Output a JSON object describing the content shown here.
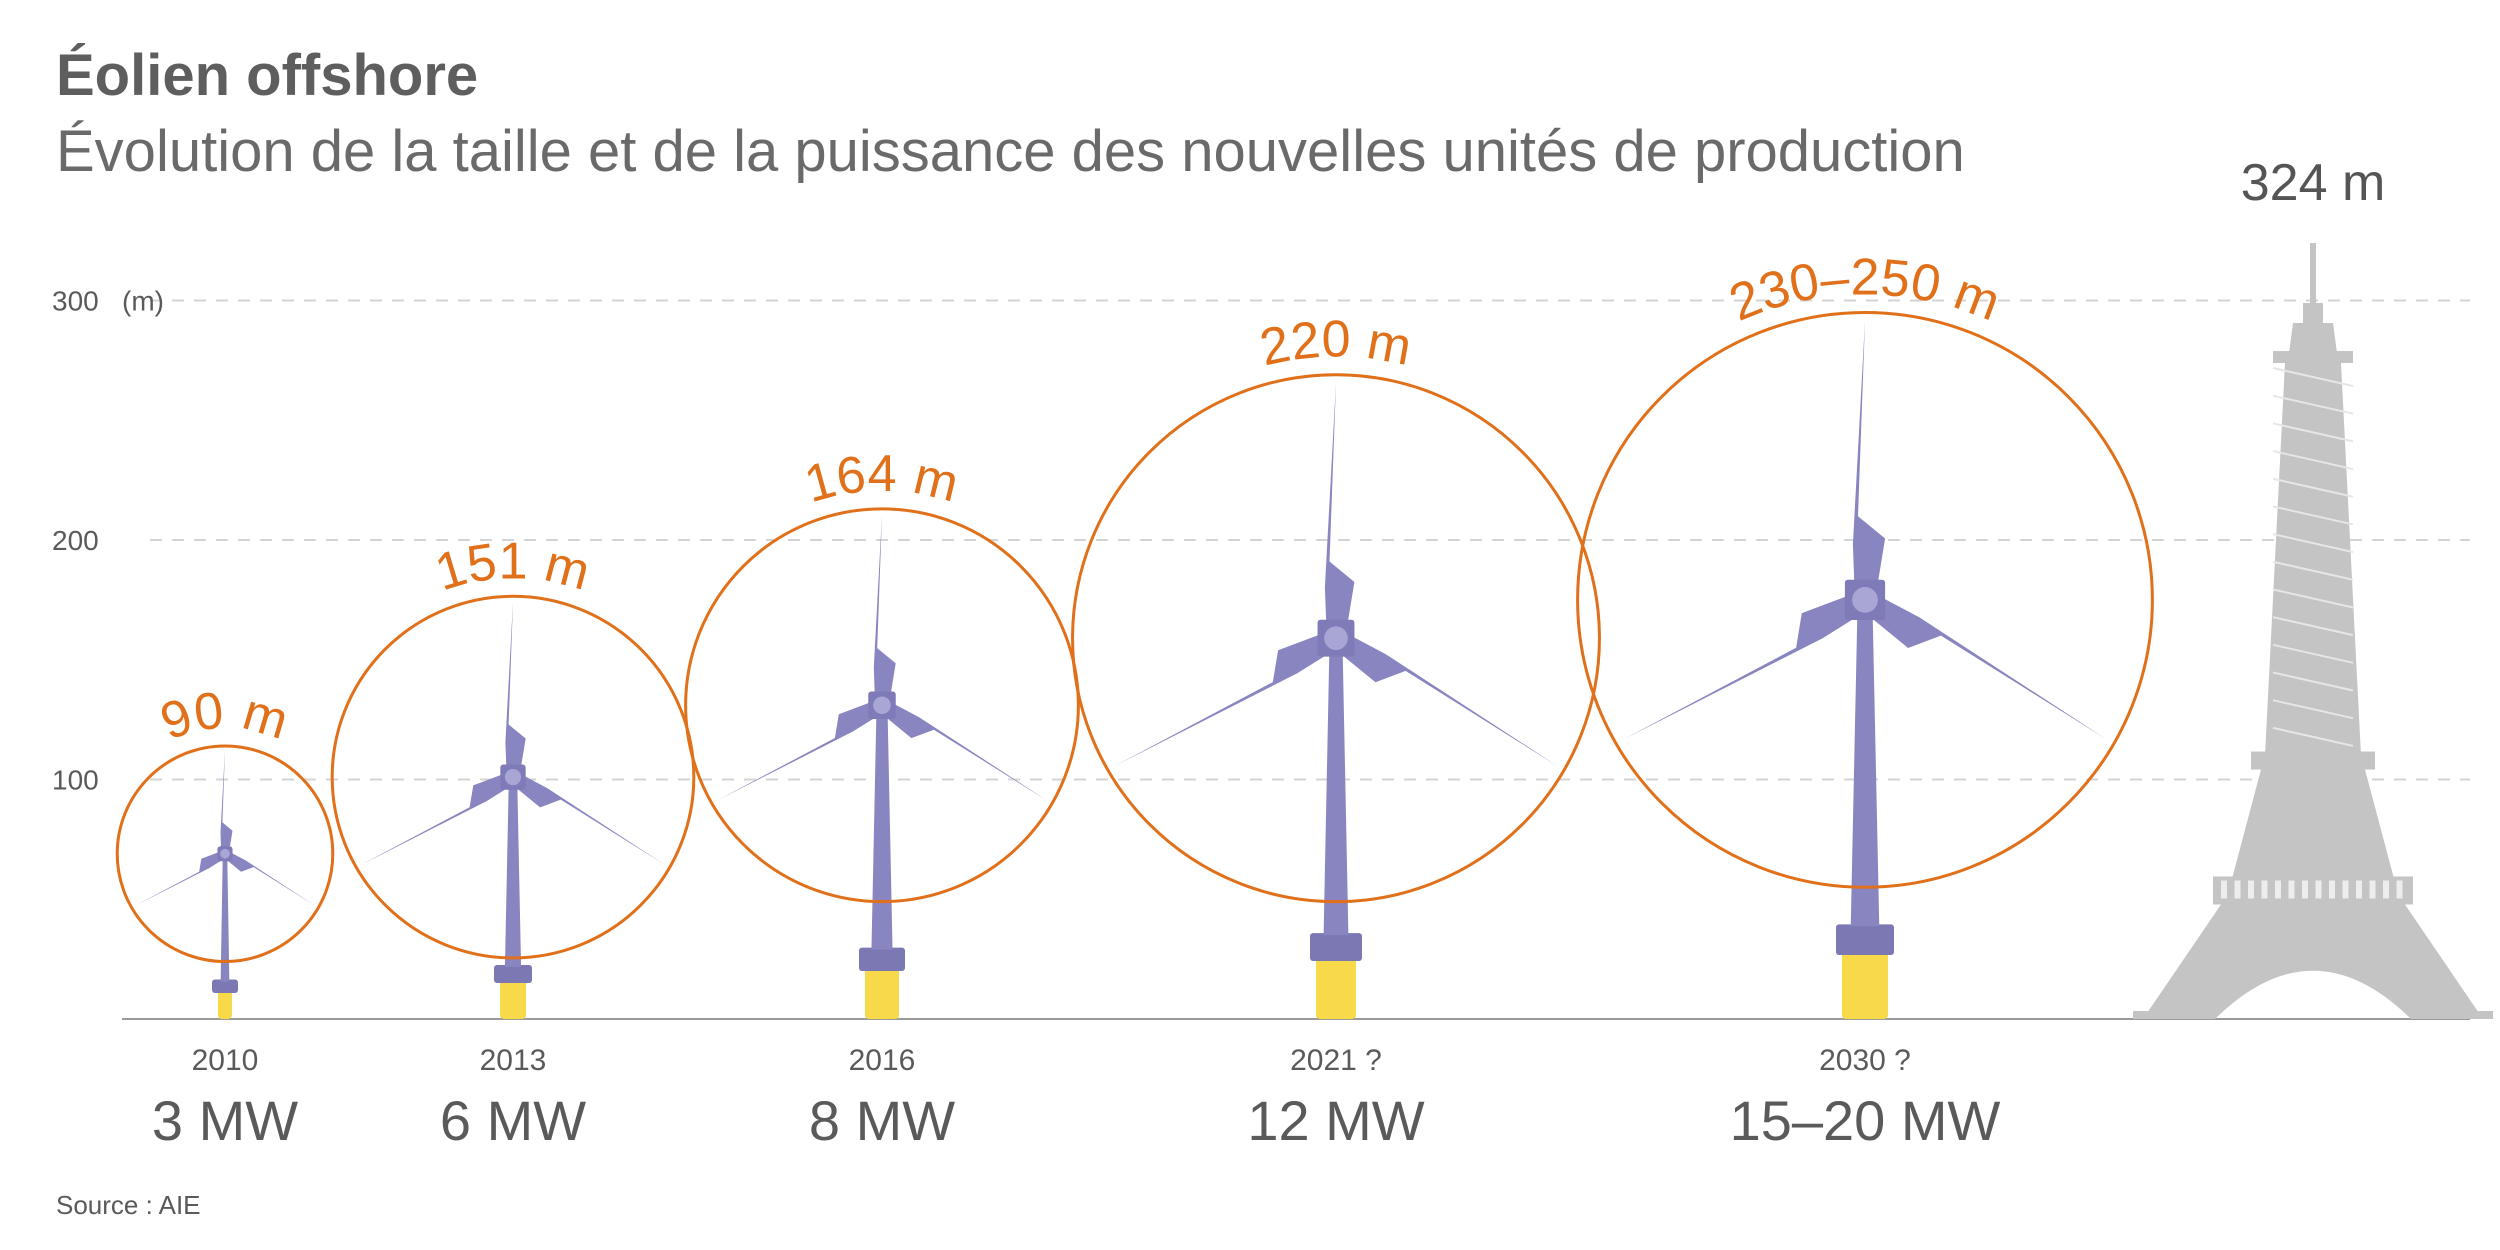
{
  "title": "Éolien offshore",
  "subtitle": "Évolution de la taille et de la puissance des nouvelles unités de production",
  "source": "Source : AIE",
  "colors": {
    "turbine": "#8885c0",
    "rotor_circle": "#e0701a",
    "foundation": "#f7d94a",
    "tower": "#c4c4c4",
    "axis": "#9a9a9a",
    "text": "#5a5a5a",
    "accent_text": "#e0701a"
  },
  "chart_data": {
    "type": "pictorial",
    "ylabel": "(m)",
    "ylim": [
      0,
      324
    ],
    "yticks": [
      100,
      200,
      300
    ],
    "grid": true,
    "turbines": [
      {
        "year": "2010",
        "power": "3 MW",
        "rotor_label": "90 m",
        "rotor_diameter": 90,
        "hub_height": 69
      },
      {
        "year": "2013",
        "power": "6 MW",
        "rotor_label": "151 m",
        "rotor_diameter": 151,
        "hub_height": 101
      },
      {
        "year": "2016",
        "power": "8 MW",
        "rotor_label": "164 m",
        "rotor_diameter": 164,
        "hub_height": 131
      },
      {
        "year": "2021 ?",
        "power": "12 MW",
        "rotor_label": "220 m",
        "rotor_diameter": 220,
        "hub_height": 159
      },
      {
        "year": "2030 ?",
        "power": "15–20 MW",
        "rotor_label": "230–250 m",
        "rotor_diameter": 240,
        "hub_height": 175
      }
    ],
    "reference": {
      "label": "324 m",
      "height": 324
    }
  }
}
